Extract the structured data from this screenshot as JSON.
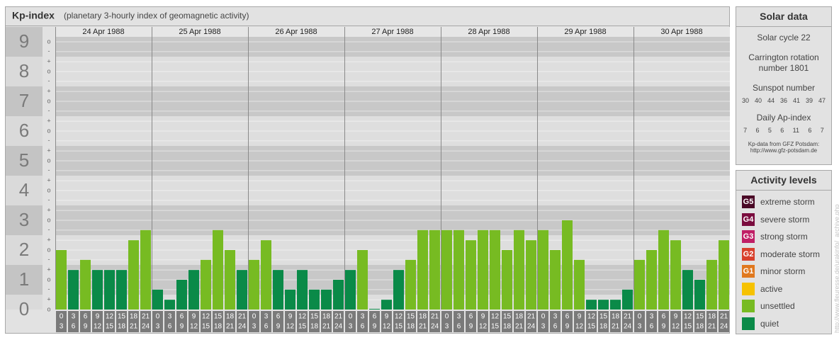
{
  "chart_data": {
    "type": "bar",
    "title": "Kp-index",
    "subtitle": "(planetary 3-hourly index of geomagnetic activity)",
    "ylim": [
      0,
      9
    ],
    "yticks": [
      0,
      1,
      2,
      3,
      4,
      5,
      6,
      7,
      8,
      9
    ],
    "yticks_minor": [
      {
        "value": 0,
        "label": "o"
      },
      {
        "value": 0.33,
        "label": "+"
      },
      {
        "value": 0.67,
        "label": "-"
      },
      {
        "value": 1,
        "label": "o"
      },
      {
        "value": 1.33,
        "label": "+"
      },
      {
        "value": 1.67,
        "label": "-"
      },
      {
        "value": 2,
        "label": "o"
      },
      {
        "value": 2.33,
        "label": "+"
      },
      {
        "value": 2.67,
        "label": "-"
      },
      {
        "value": 3,
        "label": "o"
      },
      {
        "value": 3.33,
        "label": "+"
      },
      {
        "value": 3.67,
        "label": "-"
      },
      {
        "value": 4,
        "label": "o"
      },
      {
        "value": 4.33,
        "label": "+"
      },
      {
        "value": 4.67,
        "label": "-"
      },
      {
        "value": 5,
        "label": "o"
      },
      {
        "value": 5.33,
        "label": "+"
      },
      {
        "value": 5.67,
        "label": "-"
      },
      {
        "value": 6,
        "label": "o"
      },
      {
        "value": 6.33,
        "label": "+"
      },
      {
        "value": 6.67,
        "label": "-"
      },
      {
        "value": 7,
        "label": "o"
      },
      {
        "value": 7.33,
        "label": "+"
      },
      {
        "value": 7.67,
        "label": "-"
      },
      {
        "value": 8,
        "label": "o"
      },
      {
        "value": 8.33,
        "label": "+"
      },
      {
        "value": 8.67,
        "label": "-"
      },
      {
        "value": 9,
        "label": "o"
      }
    ],
    "hours": [
      [
        "0",
        "3"
      ],
      [
        "3",
        "6"
      ],
      [
        "6",
        "9"
      ],
      [
        "9",
        "12"
      ],
      [
        "12",
        "15"
      ],
      [
        "15",
        "18"
      ],
      [
        "18",
        "21"
      ],
      [
        "21",
        "24"
      ]
    ],
    "days": [
      {
        "date": "24 Apr 1988",
        "values": [
          2,
          1.33,
          1.67,
          1.33,
          1.33,
          1.33,
          2.33,
          2.67
        ],
        "colors": [
          "#77bb22",
          "#0a8a48",
          "#77bb22",
          "#0a8a48",
          "#0a8a48",
          "#0a8a48",
          "#77bb22",
          "#77bb22"
        ]
      },
      {
        "date": "25 Apr 1988",
        "values": [
          0.67,
          0.33,
          1,
          1.33,
          1.67,
          2.67,
          2,
          1.33
        ],
        "colors": [
          "#0a8a48",
          "#0a8a48",
          "#0a8a48",
          "#0a8a48",
          "#77bb22",
          "#77bb22",
          "#77bb22",
          "#0a8a48"
        ]
      },
      {
        "date": "26 Apr 1988",
        "values": [
          1.67,
          2.33,
          1.33,
          0.67,
          1.33,
          0.67,
          0.67,
          1
        ],
        "colors": [
          "#77bb22",
          "#77bb22",
          "#0a8a48",
          "#0a8a48",
          "#0a8a48",
          "#0a8a48",
          "#0a8a48",
          "#0a8a48"
        ]
      },
      {
        "date": "27 Apr 1988",
        "values": [
          1.33,
          2,
          0,
          0.33,
          1.33,
          1.67,
          2.67,
          2.67
        ],
        "colors": [
          "#0a8a48",
          "#77bb22",
          "#0a8a48",
          "#0a8a48",
          "#0a8a48",
          "#77bb22",
          "#77bb22",
          "#77bb22"
        ]
      },
      {
        "date": "28 Apr 1988",
        "values": [
          2.67,
          2.67,
          2.33,
          2.67,
          2.67,
          2,
          2.67,
          2.33
        ],
        "colors": [
          "#77bb22",
          "#77bb22",
          "#77bb22",
          "#77bb22",
          "#77bb22",
          "#77bb22",
          "#77bb22",
          "#77bb22"
        ]
      },
      {
        "date": "29 Apr 1988",
        "values": [
          2.67,
          2,
          3,
          1.67,
          0.33,
          0.33,
          0.33,
          0.67
        ],
        "colors": [
          "#77bb22",
          "#77bb22",
          "#77bb22",
          "#77bb22",
          "#0a8a48",
          "#0a8a48",
          "#0a8a48",
          "#0a8a48"
        ]
      },
      {
        "date": "30 Apr 1988",
        "values": [
          1.67,
          2,
          2.67,
          2.33,
          1.33,
          1,
          1.67,
          2.33
        ],
        "colors": [
          "#77bb22",
          "#77bb22",
          "#77bb22",
          "#77bb22",
          "#0a8a48",
          "#0a8a48",
          "#77bb22",
          "#77bb22"
        ]
      }
    ]
  },
  "solar_data": {
    "title": "Solar data",
    "cycle": "Solar cycle 22",
    "rotation": "Carrington rotation number 1801",
    "sunspot_title": "Sunspot number",
    "sunspot": [
      30,
      40,
      44,
      36,
      41,
      39,
      47
    ],
    "ap_title": "Daily Ap-index",
    "ap": [
      7,
      6,
      5,
      6,
      11,
      6,
      7
    ],
    "source": "Kp-data from GFZ Potsdam:",
    "url": "http://www.gfz-potsdam.de"
  },
  "activity_levels": {
    "title": "Activity levels",
    "items": [
      {
        "code": "G5",
        "name": "extreme storm",
        "color": "#4a0826"
      },
      {
        "code": "G4",
        "name": "severe storm",
        "color": "#7a0c3e"
      },
      {
        "code": "G3",
        "name": "strong storm",
        "color": "#c01f66"
      },
      {
        "code": "G2",
        "name": "moderate storm",
        "color": "#d8402c"
      },
      {
        "code": "G1",
        "name": "minor storm",
        "color": "#e0781e"
      },
      {
        "name": "active",
        "color": "#f6c200"
      },
      {
        "name": "unsettled",
        "color": "#77bb22"
      },
      {
        "name": "quiet",
        "color": "#0a8a48"
      }
    ]
  },
  "side_url": "http://www.fleuresse.de/urakinfo/_archive.php"
}
